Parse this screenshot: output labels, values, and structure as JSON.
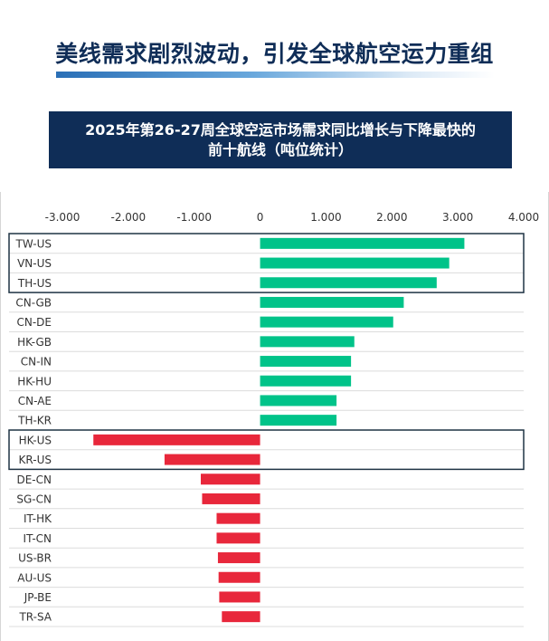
{
  "headline": "美线需求剧烈波动，引发全球航空运力重组",
  "chart_title": {
    "line1": "2025年第26-27周全球空运市场需求同比增长与下降最快的",
    "line2": "前十航线（吨位统计）"
  },
  "colors": {
    "increase": "#00c389",
    "decrease": "#e8273b",
    "title_bg": "#0f2d57",
    "highlight_border": "#1f3344"
  },
  "chart_data": {
    "type": "bar",
    "orientation": "horizontal",
    "categories": [
      "TW-US",
      "VN-US",
      "TH-US",
      "CN-GB",
      "CN-DE",
      "HK-GB",
      "CN-IN",
      "HK-HU",
      "CN-AE",
      "TH-KR",
      "HK-US",
      "KR-US",
      "DE-CN",
      "SG-CN",
      "IT-HK",
      "IT-CN",
      "US-BR",
      "AU-US",
      "JP-BE",
      "TR-SA"
    ],
    "values": [
      3100,
      2870,
      2680,
      2180,
      2020,
      1430,
      1380,
      1380,
      1160,
      1160,
      -2530,
      -1450,
      -900,
      -880,
      -660,
      -660,
      -640,
      -630,
      -620,
      -580
    ],
    "xlim": [
      -3000,
      4000
    ],
    "ticks": [
      "-3.000",
      "-2.000",
      "-1.000",
      "0",
      "1.000",
      "2.000",
      "3.000",
      "4.000"
    ],
    "highlight_groups": [
      [
        "TW-US",
        "VN-US",
        "TH-US"
      ],
      [
        "HK-US",
        "KR-US"
      ]
    ],
    "grid": "horizontal"
  }
}
